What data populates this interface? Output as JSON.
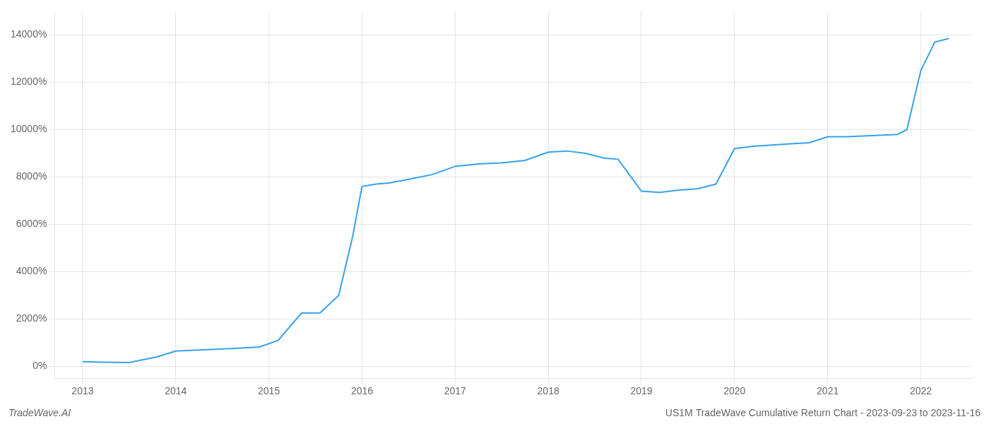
{
  "chart_data": {
    "type": "line",
    "title": "US1M TradeWave Cumulative Return Chart - 2023-09-23 to 2023-11-16",
    "annotations": [
      "TradeWave.AI"
    ],
    "x": [
      2013.0,
      2013.2,
      2013.5,
      2013.8,
      2014.0,
      2014.3,
      2014.6,
      2014.9,
      2015.1,
      2015.35,
      2015.55,
      2015.75,
      2015.9,
      2016.0,
      2016.15,
      2016.3,
      2016.5,
      2016.75,
      2017.0,
      2017.25,
      2017.5,
      2017.75,
      2018.0,
      2018.2,
      2018.4,
      2018.6,
      2018.75,
      2019.0,
      2019.2,
      2019.4,
      2019.6,
      2019.8,
      2020.0,
      2020.2,
      2020.4,
      2020.6,
      2020.8,
      2021.0,
      2021.2,
      2021.5,
      2021.75,
      2021.85,
      2022.0,
      2022.15,
      2022.3
    ],
    "values": [
      200,
      180,
      160,
      400,
      650,
      700,
      750,
      820,
      1100,
      2250,
      2260,
      3000,
      5500,
      7600,
      7700,
      7750,
      7900,
      8100,
      8450,
      8550,
      8600,
      8700,
      9050,
      9100,
      9000,
      8800,
      8750,
      7400,
      7350,
      7450,
      7500,
      7700,
      9200,
      9300,
      9350,
      9400,
      9450,
      9700,
      9700,
      9750,
      9800,
      10000,
      12500,
      13700,
      13850
    ],
    "xlim": [
      2012.7,
      2022.55
    ],
    "ylim": [
      -500,
      15000
    ],
    "xticks": [
      2013,
      2014,
      2015,
      2016,
      2017,
      2018,
      2019,
      2020,
      2021,
      2022
    ],
    "yticks": [
      {
        "value": 0,
        "label": "0%"
      },
      {
        "value": 2000,
        "label": "2000%"
      },
      {
        "value": 4000,
        "label": "4000%"
      },
      {
        "value": 6000,
        "label": "6000%"
      },
      {
        "value": 8000,
        "label": "8000%"
      },
      {
        "value": 10000,
        "label": "10000%"
      },
      {
        "value": 12000,
        "label": "12000%"
      },
      {
        "value": 14000,
        "label": "14000%"
      }
    ],
    "grid": true
  }
}
